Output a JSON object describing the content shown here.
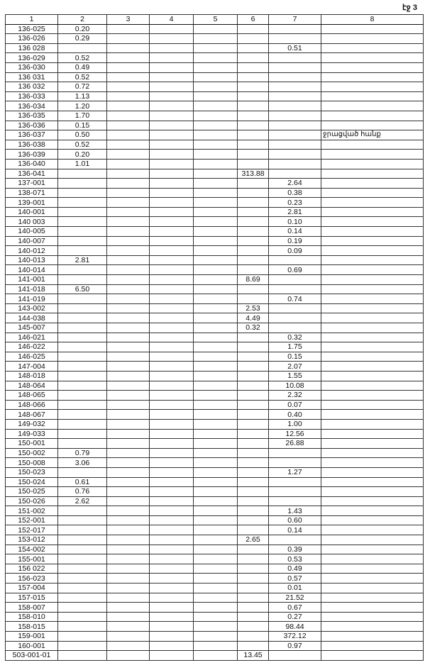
{
  "page_label": "էջ 3",
  "columns": [
    "1",
    "2",
    "3",
    "4",
    "5",
    "6",
    "7",
    "8"
  ],
  "rows": [
    [
      "136-025",
      "0.20",
      "",
      "",
      "",
      "",
      "",
      ""
    ],
    [
      "136-026",
      "0.29",
      "",
      "",
      "",
      "",
      "",
      ""
    ],
    [
      "136 028",
      "",
      "",
      "",
      "",
      "",
      "0.51",
      ""
    ],
    [
      "136-029",
      "0.52",
      "",
      "",
      "",
      "",
      "",
      ""
    ],
    [
      "136-030",
      "0.49",
      "",
      "",
      "",
      "",
      "",
      ""
    ],
    [
      "136 031",
      "0.52",
      "",
      "",
      "",
      "",
      "",
      ""
    ],
    [
      "136 032",
      "0.72",
      "",
      "",
      "",
      "",
      "",
      ""
    ],
    [
      "136-033",
      "1.13",
      "",
      "",
      "",
      "",
      "",
      ""
    ],
    [
      "136-034",
      "1.20",
      "",
      "",
      "",
      "",
      "",
      ""
    ],
    [
      "136-035",
      "1.70",
      "",
      "",
      "",
      "",
      "",
      ""
    ],
    [
      "136-036",
      "0.15",
      "",
      "",
      "",
      "",
      "",
      ""
    ],
    [
      "136-037",
      "0.50",
      "",
      "",
      "",
      "",
      "",
      "ջրացված հանք"
    ],
    [
      "136-038",
      "0.52",
      "",
      "",
      "",
      "",
      "",
      ""
    ],
    [
      "136-039",
      "0.20",
      "",
      "",
      "",
      "",
      "",
      ""
    ],
    [
      "136-040",
      "1.01",
      "",
      "",
      "",
      "",
      "",
      ""
    ],
    [
      "136-041",
      "",
      "",
      "",
      "",
      "313.88",
      "",
      ""
    ],
    [
      "137-001",
      "",
      "",
      "",
      "",
      "",
      "2.64",
      ""
    ],
    [
      "138-071",
      "",
      "",
      "",
      "",
      "",
      "0.38",
      ""
    ],
    [
      "139-001",
      "",
      "",
      "",
      "",
      "",
      "0.23",
      ""
    ],
    [
      "140-001",
      "",
      "",
      "",
      "",
      "",
      "2.81",
      ""
    ],
    [
      "140 003",
      "",
      "",
      "",
      "",
      "",
      "0.10",
      ""
    ],
    [
      "140-005",
      "",
      "",
      "",
      "",
      "",
      "0.14",
      ""
    ],
    [
      "140-007",
      "",
      "",
      "",
      "",
      "",
      "0.19",
      ""
    ],
    [
      "140-012",
      "",
      "",
      "",
      "",
      "",
      "0.09",
      ""
    ],
    [
      "140-013",
      "2.81",
      "",
      "",
      "",
      "",
      "",
      ""
    ],
    [
      "140-014",
      "",
      "",
      "",
      "",
      "",
      "0.69",
      ""
    ],
    [
      "141-001",
      "",
      "",
      "",
      "",
      "8.69",
      "",
      ""
    ],
    [
      "141-018",
      "6.50",
      "",
      "",
      "",
      "",
      "",
      ""
    ],
    [
      "141-019",
      "",
      "",
      "",
      "",
      "",
      "0.74",
      ""
    ],
    [
      "143-002",
      "",
      "",
      "",
      "",
      "2.53",
      "",
      ""
    ],
    [
      "144-038",
      "",
      "",
      "",
      "",
      "4.49",
      "",
      ""
    ],
    [
      "145-007",
      "",
      "",
      "",
      "",
      "0.32",
      "",
      ""
    ],
    [
      "146-021",
      "",
      "",
      "",
      "",
      "",
      "0.32",
      ""
    ],
    [
      "146-022",
      "",
      "",
      "",
      "",
      "",
      "1.75",
      ""
    ],
    [
      "146-025",
      "",
      "",
      "",
      "",
      "",
      "0.15",
      ""
    ],
    [
      "147-004",
      "",
      "",
      "",
      "",
      "",
      "2.07",
      ""
    ],
    [
      "148-018",
      "",
      "",
      "",
      "",
      "",
      "1.55",
      ""
    ],
    [
      "148-064",
      "",
      "",
      "",
      "",
      "",
      "10.08",
      ""
    ],
    [
      "148-065",
      "",
      "",
      "",
      "",
      "",
      "2.32",
      ""
    ],
    [
      "148-066",
      "",
      "",
      "",
      "",
      "",
      "0.07",
      ""
    ],
    [
      "148-067",
      "",
      "",
      "",
      "",
      "",
      "0.40",
      ""
    ],
    [
      "149-032",
      "",
      "",
      "",
      "",
      "",
      "1.00",
      ""
    ],
    [
      "149-033",
      "",
      "",
      "",
      "",
      "",
      "12.56",
      ""
    ],
    [
      "150-001",
      "",
      "",
      "",
      "",
      "",
      "26.88",
      ""
    ],
    [
      "150-002",
      "0.79",
      "",
      "",
      "",
      "",
      "",
      ""
    ],
    [
      "150-008",
      "3.06",
      "",
      "",
      "",
      "",
      "",
      ""
    ],
    [
      "150-023",
      "",
      "",
      "",
      "",
      "",
      "1.27",
      ""
    ],
    [
      "150-024",
      "0.61",
      "",
      "",
      "",
      "",
      "",
      ""
    ],
    [
      "150-025",
      "0.76",
      "",
      "",
      "",
      "",
      "",
      ""
    ],
    [
      "150-026",
      "2.62",
      "",
      "",
      "",
      "",
      "",
      ""
    ],
    [
      "151-002",
      "",
      "",
      "",
      "",
      "",
      "1.43",
      ""
    ],
    [
      "152-001",
      "",
      "",
      "",
      "",
      "",
      "0.60",
      ""
    ],
    [
      "152-017",
      "",
      "",
      "",
      "",
      "",
      "0.14",
      ""
    ],
    [
      "153-012",
      "",
      "",
      "",
      "",
      "2.65",
      "",
      ""
    ],
    [
      "154-002",
      "",
      "",
      "",
      "",
      "",
      "0.39",
      ""
    ],
    [
      "155-001",
      "",
      "",
      "",
      "",
      "",
      "0.53",
      ""
    ],
    [
      "156 022",
      "",
      "",
      "",
      "",
      "",
      "0.49",
      ""
    ],
    [
      "156-023",
      "",
      "",
      "",
      "",
      "",
      "0.57",
      ""
    ],
    [
      "157-004",
      "",
      "",
      "",
      "",
      "",
      "0.01",
      ""
    ],
    [
      "157-015",
      "",
      "",
      "",
      "",
      "",
      "21.52",
      ""
    ],
    [
      "158-007",
      "",
      "",
      "",
      "",
      "",
      "0.67",
      ""
    ],
    [
      "158-010",
      "",
      "",
      "",
      "",
      "",
      "0.27",
      ""
    ],
    [
      "158-015",
      "",
      "",
      "",
      "",
      "",
      "98.44",
      ""
    ],
    [
      "159-001",
      "",
      "",
      "",
      "",
      "",
      "372.12",
      ""
    ],
    [
      "160-001",
      "",
      "",
      "",
      "",
      "",
      "0.97",
      ""
    ],
    [
      "503-001-01",
      "",
      "",
      "",
      "",
      "13.45",
      "",
      ""
    ]
  ]
}
